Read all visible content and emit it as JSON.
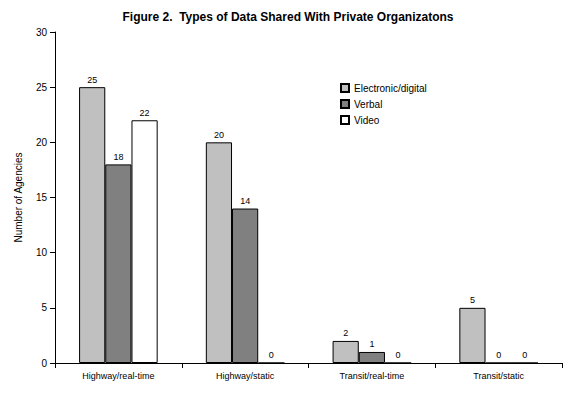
{
  "chart_data": {
    "type": "bar",
    "title": "Figure 2.  Types of Data Shared With Private Organizatons",
    "y_label": "Number of Agencies",
    "categories": [
      "Highway/real-time",
      "Highway/static",
      "Transit/real-time",
      "Transit/static"
    ],
    "series": [
      {
        "name": "Electronic/digital",
        "color": "#c0c0c0",
        "values": [
          25,
          20,
          2,
          5
        ]
      },
      {
        "name": "Verbal",
        "color": "#808080",
        "values": [
          18,
          14,
          1,
          0
        ]
      },
      {
        "name": "Video",
        "color": "#ffffff",
        "values": [
          22,
          0,
          0,
          0
        ]
      }
    ],
    "ylim": [
      0,
      30
    ],
    "yticks": [
      0,
      5,
      10,
      15,
      20,
      25,
      30
    ],
    "grid": false,
    "legend": "upper right",
    "data_labels": true
  }
}
